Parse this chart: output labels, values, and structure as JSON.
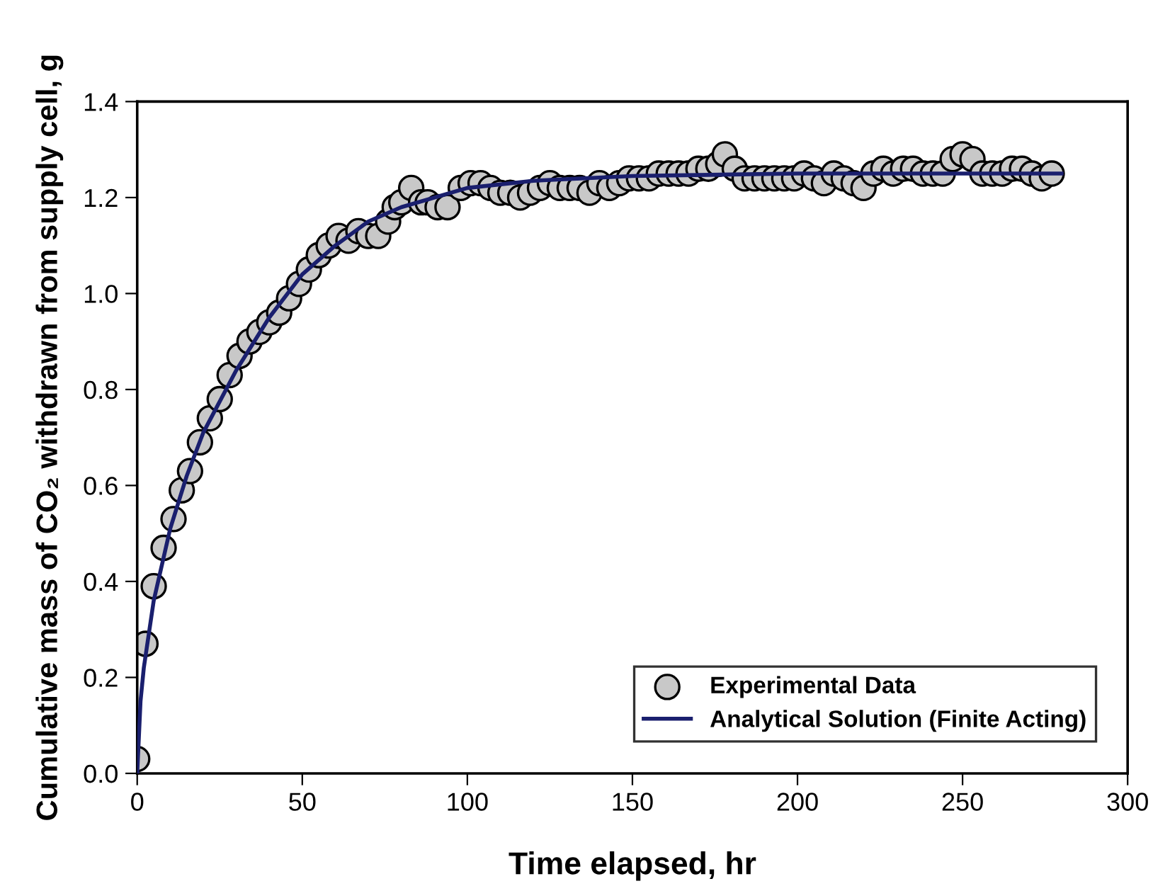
{
  "chart_data": {
    "type": "scatter",
    "xlabel": "Time elapsed, hr",
    "ylabel": "Cumulative mass of CO₂ withdrawn from supply cell, g",
    "xlim": [
      0,
      300
    ],
    "xticks": [
      0,
      50,
      100,
      150,
      200,
      250,
      300
    ],
    "ylim": [
      0,
      1.4
    ],
    "yticks": [
      {
        "value": 0,
        "label": "0.0"
      },
      {
        "value": 0.2,
        "label": "0.2"
      },
      {
        "value": 0.4,
        "label": "0.4"
      },
      {
        "value": 0.6,
        "label": "0.6"
      },
      {
        "value": 0.8,
        "label": "0.8"
      },
      {
        "value": 1.0,
        "label": "1.0"
      },
      {
        "value": 1.2,
        "label": "1.2"
      },
      {
        "value": 1.4,
        "label": "1.4"
      }
    ],
    "grid": false,
    "legend": "bottom right",
    "series": [
      {
        "name": "Experimental Data",
        "marker": "circle",
        "color": "#c8c8c8",
        "x": [
          0,
          2.5,
          5,
          8,
          11,
          13.5,
          16,
          19,
          22,
          25,
          28,
          31,
          34,
          37,
          40,
          43,
          46,
          49,
          52,
          55,
          58,
          61,
          64,
          67,
          70,
          73,
          76,
          78,
          80,
          83,
          86,
          88,
          91,
          94,
          98,
          101,
          104,
          107,
          110,
          113,
          116,
          119,
          122,
          125,
          128,
          131,
          134,
          137,
          140,
          143,
          146,
          149,
          152,
          155,
          158,
          161,
          164,
          167,
          170,
          173,
          176,
          178,
          181,
          184,
          187,
          190,
          193,
          196,
          199,
          202,
          205,
          208,
          211,
          214,
          217,
          220,
          223,
          226,
          229,
          232,
          235,
          238,
          241,
          244,
          247,
          250,
          253,
          256,
          259,
          262,
          265,
          268,
          271,
          274,
          277
        ],
        "values": [
          0.03,
          0.27,
          0.39,
          0.47,
          0.53,
          0.59,
          0.63,
          0.69,
          0.74,
          0.78,
          0.83,
          0.87,
          0.9,
          0.92,
          0.94,
          0.96,
          0.99,
          1.02,
          1.05,
          1.08,
          1.1,
          1.12,
          1.11,
          1.13,
          1.12,
          1.12,
          1.15,
          1.18,
          1.19,
          1.22,
          1.19,
          1.19,
          1.18,
          1.18,
          1.22,
          1.23,
          1.23,
          1.22,
          1.21,
          1.21,
          1.2,
          1.21,
          1.22,
          1.23,
          1.22,
          1.22,
          1.22,
          1.21,
          1.23,
          1.22,
          1.23,
          1.24,
          1.24,
          1.24,
          1.25,
          1.25,
          1.25,
          1.25,
          1.26,
          1.26,
          1.27,
          1.29,
          1.26,
          1.24,
          1.24,
          1.24,
          1.24,
          1.24,
          1.24,
          1.25,
          1.24,
          1.23,
          1.25,
          1.24,
          1.23,
          1.22,
          1.25,
          1.26,
          1.25,
          1.26,
          1.26,
          1.25,
          1.25,
          1.25,
          1.28,
          1.29,
          1.28,
          1.25,
          1.25,
          1.25,
          1.26,
          1.26,
          1.25,
          1.24,
          1.25
        ]
      },
      {
        "name": "Analytical Solution (Finite Acting)",
        "type": "line",
        "marker": "none",
        "line_style": "solid",
        "color": "#1a1f6e",
        "x": [
          0,
          1,
          2,
          5,
          10,
          15,
          20,
          30,
          40,
          50,
          60,
          70,
          80,
          100,
          120,
          150,
          200,
          280
        ],
        "values": [
          0,
          0.15,
          0.22,
          0.36,
          0.51,
          0.62,
          0.71,
          0.84,
          0.95,
          1.04,
          1.1,
          1.15,
          1.18,
          1.22,
          1.235,
          1.245,
          1.25,
          1.25
        ]
      }
    ]
  }
}
